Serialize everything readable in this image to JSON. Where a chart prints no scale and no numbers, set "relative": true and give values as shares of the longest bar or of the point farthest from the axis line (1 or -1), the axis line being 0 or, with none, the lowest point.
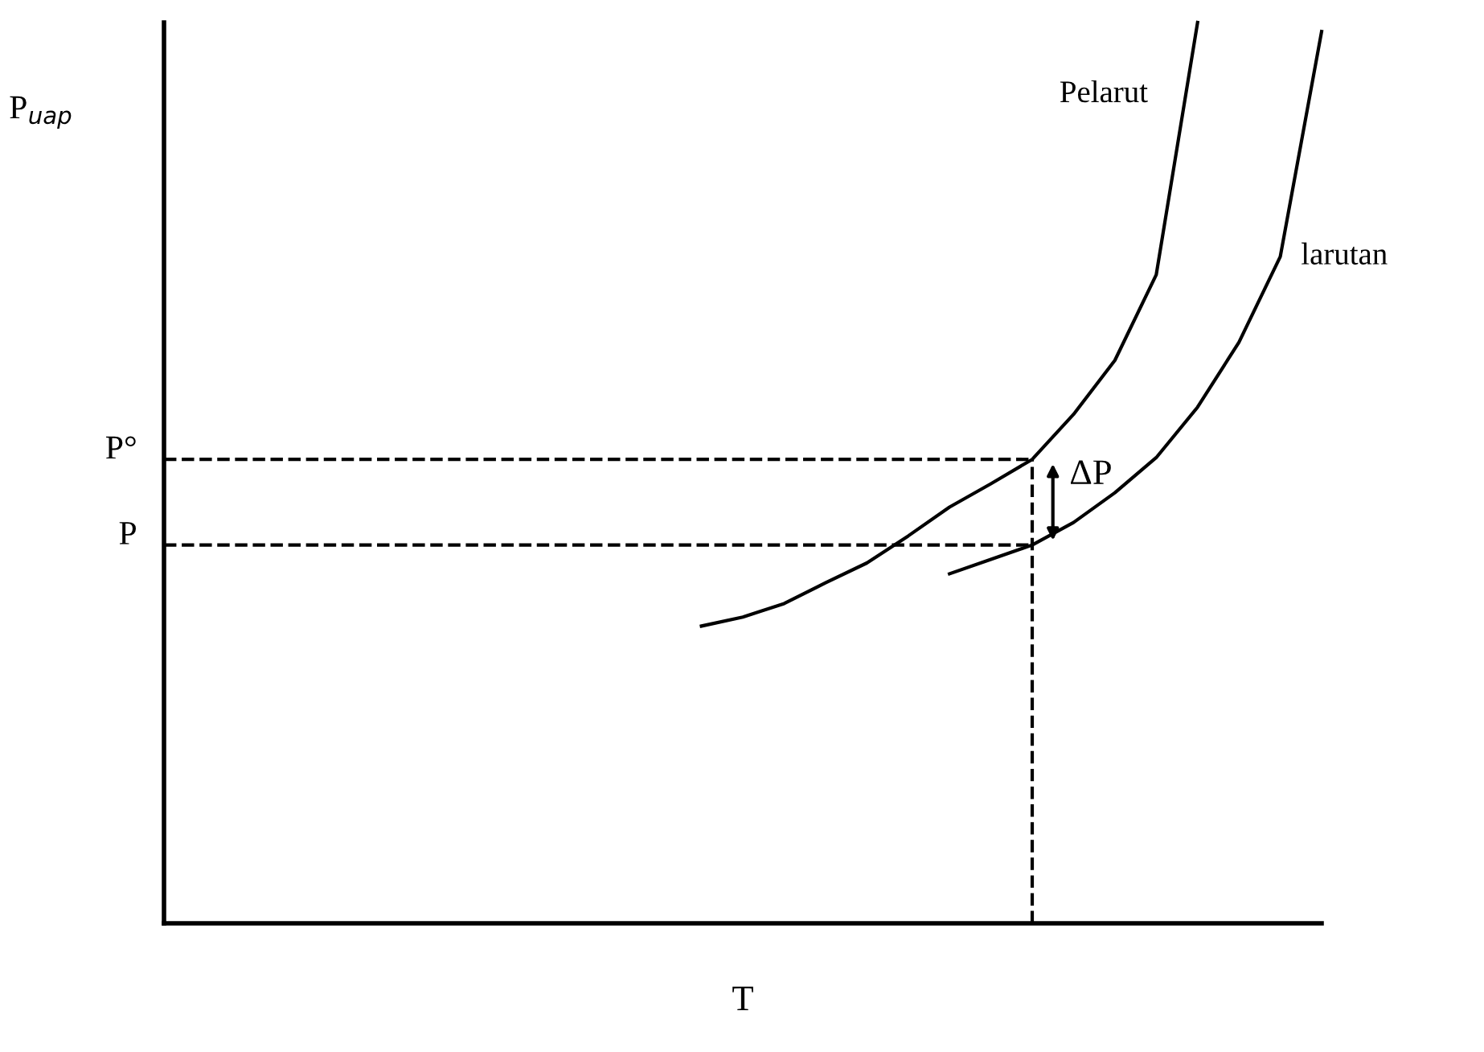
{
  "chart_data": {
    "type": "line",
    "relative": true,
    "xlabel": "T",
    "ylabel": "P$_{uap}$",
    "legend": false,
    "marker": "none",
    "line_style": "solid",
    "categories": [
      null,
      null,
      null,
      null,
      null,
      null,
      null,
      null,
      null,
      null,
      null,
      null,
      null,
      null,
      null,
      null,
      null,
      null,
      null,
      null,
      null,
      null,
      null,
      null,
      null,
      null,
      null,
      null,
      null
    ],
    "series": [
      {
        "name": "Pelarut",
        "color": "#000000",
        "values": [
          null,
          null,
          null,
          null,
          null,
          null,
          null,
          null,
          null,
          null,
          null,
          null,
          null,
          0.33,
          0.34,
          0.355,
          0.378,
          0.4,
          0.43,
          0.462,
          0.488,
          0.515,
          0.565,
          0.625,
          0.72,
          1.0,
          null,
          null,
          null
        ]
      },
      {
        "name": "larutan",
        "color": "#000000",
        "values": [
          null,
          null,
          null,
          null,
          null,
          null,
          null,
          null,
          null,
          null,
          null,
          null,
          null,
          null,
          null,
          null,
          null,
          null,
          null,
          0.388,
          0.404,
          0.42,
          0.445,
          0.478,
          0.517,
          0.573,
          0.645,
          0.74,
          0.99
        ]
      }
    ],
    "ref_lines": [
      {
        "axis": "y",
        "value": 0.515,
        "label": "P°",
        "line_style": "dashed",
        "color": "#000000"
      },
      {
        "axis": "y",
        "value": 0.42,
        "label": "P",
        "line_style": "dashed",
        "color": "#000000"
      }
    ],
    "annotations": [
      "ΔP"
    ]
  }
}
